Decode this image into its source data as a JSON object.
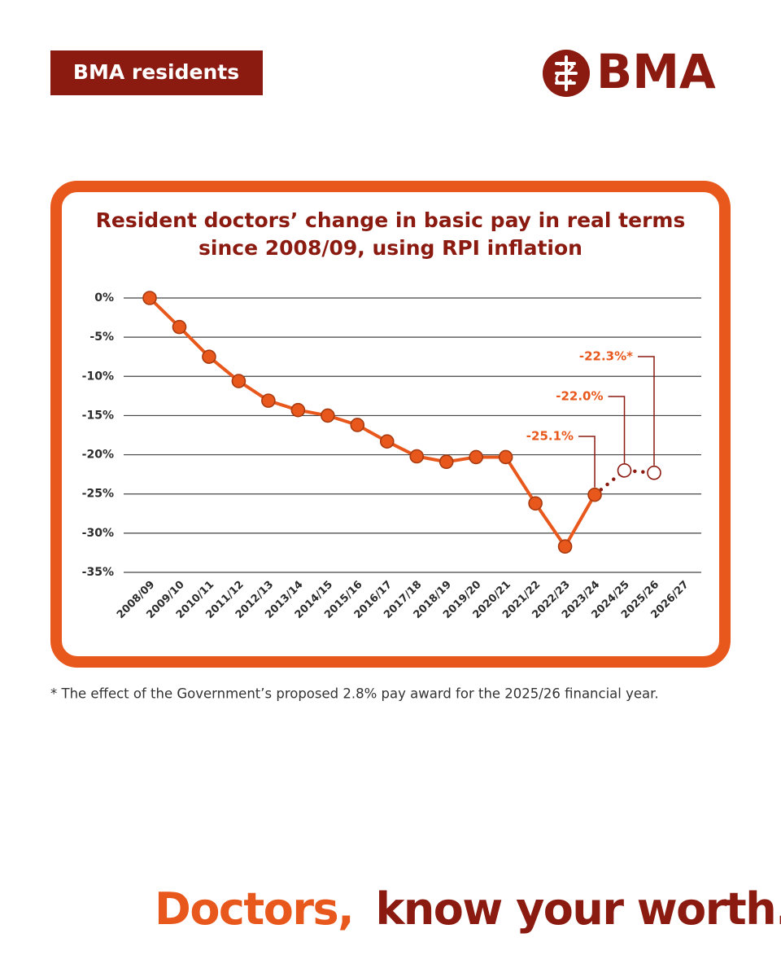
{
  "header": {
    "badge": "BMA residents",
    "logo": "BMA"
  },
  "chart_data": {
    "type": "line",
    "title_lines": [
      "Resident doctors’ change in basic pay in real terms",
      "since 2008/09, using RPI inflation"
    ],
    "categories": [
      "2008/09",
      "2009/10",
      "2010/11",
      "2011/12",
      "2012/13",
      "2013/14",
      "2014/15",
      "2015/16",
      "2016/17",
      "2017/18",
      "2018/19",
      "2019/20",
      "2020/21",
      "2021/22",
      "2022/23",
      "2023/24",
      "2024/25",
      "2025/26",
      "2026/27"
    ],
    "values": [
      0,
      -3.7,
      -7.5,
      -10.6,
      -13.1,
      -14.3,
      -15.0,
      -16.2,
      -18.3,
      -20.2,
      -20.9,
      -20.3,
      -20.3,
      -26.2,
      -31.7,
      -25.1,
      -22.0,
      -22.3,
      null
    ],
    "value_labels": [
      null,
      null,
      null,
      null,
      null,
      null,
      null,
      null,
      null,
      null,
      null,
      null,
      null,
      null,
      null,
      "-25.1%",
      "-22.0%",
      "-22.3%*",
      null
    ],
    "projection_start": "2023/24",
    "color": "#e8581c",
    "ylim": [
      -35,
      0
    ],
    "yticks": [
      {
        "value": 0,
        "label": "0%"
      },
      {
        "value": -5,
        "label": "-5%"
      },
      {
        "value": -10,
        "label": "-10%"
      },
      {
        "value": -15,
        "label": "-15%"
      },
      {
        "value": -20,
        "label": "-20%"
      },
      {
        "value": -25,
        "label": "-25%"
      },
      {
        "value": -30,
        "label": "-30%"
      },
      {
        "value": -35,
        "label": "-35%"
      }
    ],
    "grid": true
  },
  "footnote": "* The effect of the Government’s proposed 2.8% pay award for the 2025/26 financial year.",
  "tagline": {
    "highlight": "Doctors,",
    "rest": "know your worth."
  }
}
